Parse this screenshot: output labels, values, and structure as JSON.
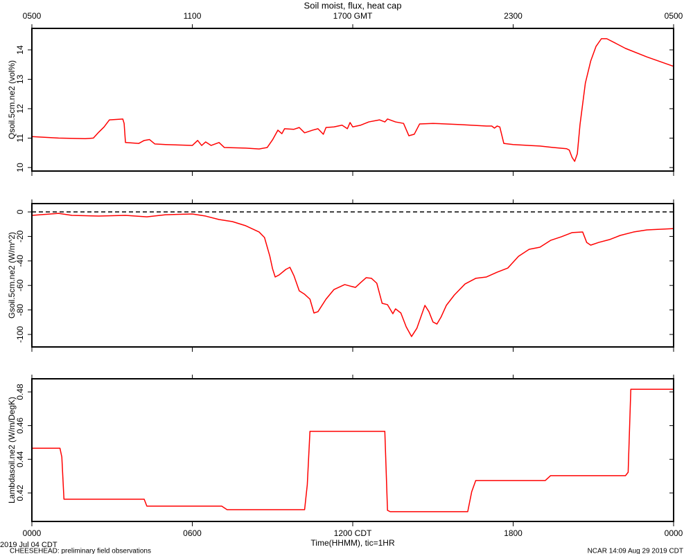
{
  "chart_data": [
    {
      "type": "line",
      "title": "Soil moist, flux, heat cap",
      "ylabel": "Qsoil.5cm.ne2 (vol%)",
      "color": "#ff0000",
      "xlim": [
        0,
        24
      ],
      "ylim": [
        9.88,
        14.73
      ],
      "yticks": [
        10,
        11,
        12,
        13,
        14
      ],
      "x2ticks": [
        {
          "value": 0,
          "label": "0500"
        },
        {
          "value": 6,
          "label": "1100"
        },
        {
          "value": 12,
          "label": "1700 GMT"
        },
        {
          "value": 18,
          "label": "2300"
        },
        {
          "value": 24,
          "label": "0500"
        }
      ],
      "x": [
        0,
        1,
        2,
        2.3,
        2.5,
        2.7,
        2.9,
        3.4,
        3.45,
        3.5,
        4.0,
        4.2,
        4.4,
        4.6,
        5.0,
        6.0,
        6.2,
        6.35,
        6.5,
        6.7,
        7.0,
        7.2,
        8.0,
        8.5,
        8.8,
        9.0,
        9.2,
        9.35,
        9.45,
        9.8,
        10.0,
        10.2,
        10.5,
        10.7,
        10.9,
        11.0,
        11.3,
        11.6,
        11.8,
        11.9,
        12.0,
        12.3,
        12.6,
        13.0,
        13.2,
        13.3,
        13.6,
        13.9,
        14.1,
        14.3,
        14.5,
        15.0,
        16.0,
        17.0,
        17.2,
        17.3,
        17.4,
        17.5,
        17.65,
        18.0,
        19.0,
        19.5,
        20.0,
        20.1,
        20.2,
        20.3,
        20.4,
        20.5,
        20.7,
        20.9,
        21.1,
        21.3,
        21.5,
        21.8,
        22.2,
        23.0,
        24.0
      ],
      "values": [
        11.05,
        11.0,
        10.98,
        11.0,
        11.2,
        11.38,
        11.62,
        11.65,
        11.5,
        10.85,
        10.82,
        10.92,
        10.95,
        10.8,
        10.78,
        10.75,
        10.92,
        10.75,
        10.87,
        10.75,
        10.85,
        10.68,
        10.66,
        10.63,
        10.68,
        10.94,
        11.27,
        11.15,
        11.32,
        11.3,
        11.36,
        11.18,
        11.27,
        11.32,
        11.13,
        11.36,
        11.38,
        11.44,
        11.32,
        11.53,
        11.38,
        11.44,
        11.55,
        11.62,
        11.55,
        11.65,
        11.55,
        11.5,
        11.08,
        11.13,
        11.48,
        11.5,
        11.46,
        11.41,
        11.41,
        11.34,
        11.41,
        11.38,
        10.82,
        10.78,
        10.73,
        10.68,
        10.64,
        10.59,
        10.35,
        10.21,
        10.47,
        11.46,
        12.87,
        13.62,
        14.12,
        14.38,
        14.38,
        14.24,
        14.05,
        13.76,
        13.44
      ]
    },
    {
      "type": "line",
      "ylabel": "Gsoil.5cm.ne2 (W/m^2)",
      "color": "#ff0000",
      "hline": 0,
      "xlim": [
        0,
        24
      ],
      "ylim": [
        -110.2,
        6.8
      ],
      "yticks": [
        -100,
        -80,
        -60,
        -40,
        -20,
        0
      ],
      "x": [
        0,
        1,
        1.5,
        2.5,
        3.5,
        4.3,
        5.0,
        6.0,
        6.5,
        7.0,
        7.5,
        8.0,
        8.5,
        8.7,
        8.9,
        9.0,
        9.1,
        9.25,
        9.5,
        9.65,
        9.8,
        10.0,
        10.2,
        10.4,
        10.55,
        10.7,
        11.0,
        11.3,
        11.7,
        11.9,
        12.1,
        12.3,
        12.5,
        12.7,
        12.9,
        13.1,
        13.3,
        13.5,
        13.6,
        13.8,
        14.0,
        14.2,
        14.4,
        14.7,
        14.85,
        15.0,
        15.15,
        15.3,
        15.5,
        15.8,
        16.2,
        16.6,
        17.0,
        17.4,
        17.8,
        18.2,
        18.6,
        19.0,
        19.4,
        19.8,
        20.2,
        20.6,
        20.75,
        20.9,
        21.2,
        21.6,
        22.0,
        22.5,
        23.0,
        24.0
      ],
      "values": [
        -2.8,
        -1.2,
        -2.8,
        -3.4,
        -2.8,
        -4.0,
        -2.3,
        -1.7,
        -3.4,
        -6.2,
        -7.9,
        -11.3,
        -16.4,
        -20.9,
        -36.2,
        -46.3,
        -53.1,
        -51.4,
        -46.9,
        -45.2,
        -52.0,
        -64.4,
        -67.2,
        -71.2,
        -82.5,
        -81.4,
        -71.2,
        -63.3,
        -59.3,
        -60.5,
        -61.6,
        -57.6,
        -53.7,
        -54.2,
        -58.2,
        -74.6,
        -75.7,
        -83.1,
        -79.1,
        -82.5,
        -93.8,
        -101.7,
        -94.9,
        -76.3,
        -81.4,
        -89.8,
        -91.5,
        -85.9,
        -76.3,
        -67.8,
        -58.8,
        -54.2,
        -53.1,
        -49.2,
        -45.8,
        -36.2,
        -30.5,
        -28.8,
        -23.2,
        -20.3,
        -16.9,
        -16.4,
        -24.9,
        -27.1,
        -24.9,
        -22.6,
        -19.2,
        -16.4,
        -14.7,
        -13.6
      ]
    },
    {
      "type": "line",
      "ylabel": "Lambdasoil.ne2 (W/m/DegK)",
      "color": "#ff0000",
      "xlim": [
        0,
        24
      ],
      "ylim": [
        0.4031,
        0.4878
      ],
      "yticks": [
        0.42,
        0.44,
        0.46,
        0.48
      ],
      "xticks": [
        {
          "value": 0,
          "label": "0000"
        },
        {
          "value": 6,
          "label": "0600"
        },
        {
          "value": 12,
          "label": "1200 CDT"
        },
        {
          "value": 18,
          "label": "1800"
        },
        {
          "value": 24,
          "label": "0000"
        }
      ],
      "xlabel": "Time(HHMM), tic=1HR",
      "x": [
        0,
        1.05,
        1.12,
        1.2,
        4.2,
        4.3,
        7.1,
        7.3,
        10.2,
        10.3,
        10.4,
        13.2,
        13.3,
        13.4,
        16.3,
        16.45,
        16.6,
        19.2,
        19.4,
        22.2,
        22.3,
        22.4,
        24
      ],
      "values": [
        0.4466,
        0.4466,
        0.4414,
        0.4163,
        0.4163,
        0.4122,
        0.4122,
        0.4101,
        0.4101,
        0.4249,
        0.4566,
        0.4566,
        0.4097,
        0.4089,
        0.4089,
        0.4208,
        0.4274,
        0.4274,
        0.4303,
        0.4303,
        0.4323,
        0.4816,
        0.4816
      ]
    }
  ],
  "footer": {
    "date": "2019 Jul 04 CDT",
    "project": "CHEESEHEAD: preliminary field observations",
    "stamp": "NCAR 14:09 Aug 29 2019 CDT"
  }
}
